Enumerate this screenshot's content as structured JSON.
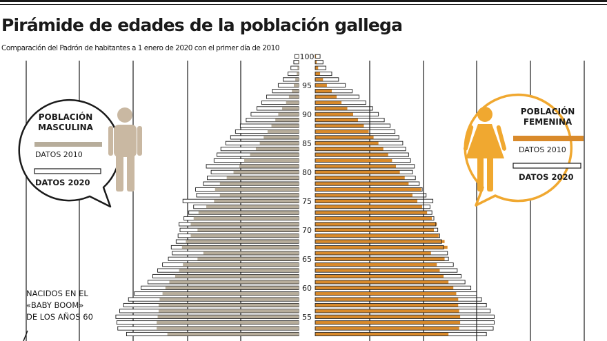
{
  "header": {
    "title": "Pirámide de edades de la población gallega",
    "subtitle": "Comparación del Padrón de habitantes a 1 enero de 2020 con el primer día de 2010"
  },
  "legend": {
    "male_title": [
      "POBLACIÓN",
      "MASCULINA"
    ],
    "female_title": [
      "POBLACIÓN",
      "FEMENINA"
    ],
    "label_2010": "DATOS 2010",
    "label_2020": "DATOS 2020"
  },
  "annotation": [
    "NACIDOS EN EL",
    "«BABY BOOM»",
    "DE LOS AÑOS 60"
  ],
  "colors": {
    "male_2010": "#b7ad9b",
    "female_2010": "#d98a2b",
    "bubble_female": "#f0a830",
    "figure_male": "#c9b8a2",
    "figure_female": "#f0a830",
    "outline": "#1a1a1a"
  },
  "chart_data": {
    "type": "bar",
    "orientation": "horizontal-pyramid",
    "title": "Pirámide de edades de la población gallega",
    "age_range": [
      52,
      100
    ],
    "age_tick_labels": [
      "100",
      "95",
      "90",
      "85",
      "80",
      "75",
      "70",
      "65",
      "60",
      "55"
    ],
    "series": [
      {
        "name": "DATOS 2010",
        "sex": "male",
        "values": [
          13500,
          14600,
          14600,
          14500,
          14400,
          14400,
          14300,
          14000,
          13700,
          13300,
          12700,
          12300,
          11900,
          10400,
          9800,
          12000,
          11600,
          11100,
          10400,
          11100,
          10800,
          10300,
          9500,
          8700,
          8100,
          8600,
          8100,
          7400,
          6700,
          6100,
          5600,
          5000,
          4400,
          4000,
          3600,
          3200,
          2800,
          2400,
          2100,
          1700,
          1300,
          1000,
          700,
          500,
          350,
          200,
          120,
          70,
          40
        ]
      },
      {
        "name": "DATOS 2020",
        "sex": "male",
        "values": [
          17700,
          18600,
          18700,
          18800,
          18400,
          18000,
          17500,
          16900,
          16200,
          15500,
          15000,
          14500,
          14000,
          13400,
          13000,
          13100,
          12600,
          12400,
          12200,
          12300,
          11800,
          11300,
          10800,
          11900,
          10500,
          10600,
          9800,
          9400,
          9000,
          9500,
          8700,
          8400,
          8000,
          7500,
          7000,
          6500,
          6000,
          5400,
          4900,
          4300,
          3800,
          3300,
          2700,
          2100,
          1600,
          1100,
          800,
          500,
          400
        ]
      },
      {
        "name": "DATOS 2010",
        "sex": "female",
        "values": [
          13700,
          14800,
          14900,
          14900,
          14800,
          14700,
          14700,
          14500,
          14200,
          13700,
          13200,
          12800,
          12500,
          13300,
          11900,
          13600,
          13300,
          12700,
          12200,
          12500,
          12000,
          11500,
          11000,
          10500,
          10000,
          10900,
          9600,
          9200,
          8700,
          8300,
          7900,
          7500,
          7000,
          6500,
          6000,
          5500,
          5000,
          4400,
          3900,
          3300,
          2700,
          2200,
          1700,
          1200,
          800,
          500,
          300,
          150,
          80
        ]
      },
      {
        "name": "DATOS 2020",
        "sex": "female",
        "values": [
          17600,
          18300,
          18400,
          18400,
          18000,
          17600,
          17100,
          16600,
          16000,
          15400,
          15000,
          14600,
          14200,
          13700,
          13600,
          13200,
          13000,
          12800,
          12600,
          12400,
          12200,
          12000,
          11800,
          12100,
          11400,
          11000,
          10700,
          10300,
          10000,
          10200,
          9800,
          9600,
          9300,
          9000,
          8600,
          8200,
          7700,
          7100,
          6500,
          5900,
          5200,
          4500,
          3800,
          3100,
          2400,
          1700,
          1100,
          800,
          500
        ]
      }
    ],
    "grid": true,
    "annotations": [
      "NACIDOS EN EL «BABY BOOM» DE LOS AÑOS 60"
    ]
  }
}
